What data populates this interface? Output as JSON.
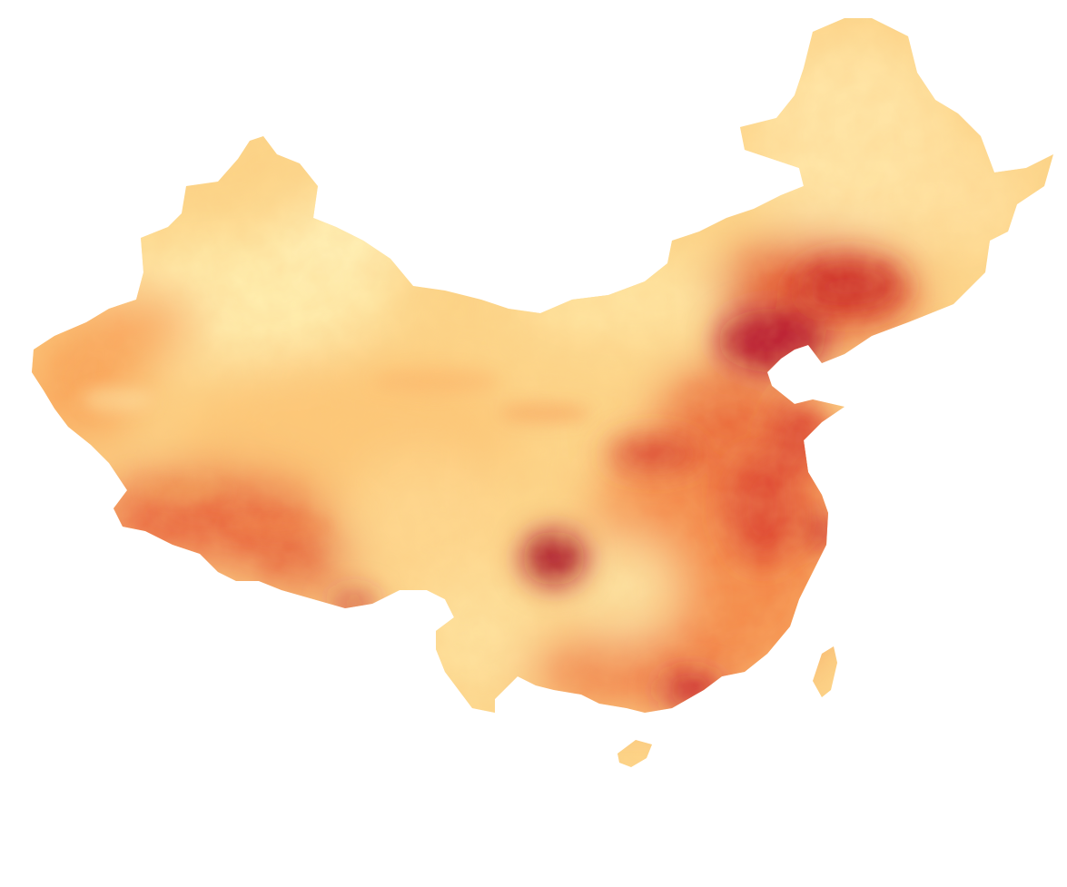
{
  "map": {
    "kind": "choropleth-raster",
    "region": "China",
    "colormap": "yellow-orange-red",
    "palette": {
      "low": "#ffffcc",
      "low_mid": "#fed976",
      "mid": "#fd8d3c",
      "mid_high": "#e31a1c",
      "high": "#a50026"
    },
    "background": "#ffffff",
    "legend_shown": false,
    "title_shown": false,
    "printed_text": []
  }
}
